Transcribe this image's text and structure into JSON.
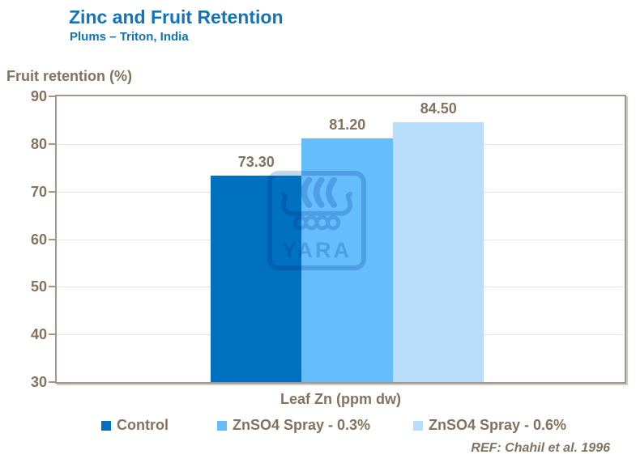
{
  "header": {
    "title": "Zinc and Fruit Retention",
    "subtitle": "Plums – Triton, India"
  },
  "chart_data": {
    "type": "bar",
    "title": "Zinc and Fruit Retention",
    "subtitle": "Plums – Triton, India",
    "ylabel": "Fruit retention (%)",
    "xlabel": "Leaf Zn (ppm dw)",
    "ylim": [
      30,
      90
    ],
    "yticks": [
      "90",
      "80",
      "70",
      "60",
      "50",
      "40",
      "30"
    ],
    "grid": "horizontal",
    "legend_position": "bottom",
    "categories": [
      "Control",
      "ZnSO4 Spray - 0.3%",
      "ZnSO4 Spray - 0.6%"
    ],
    "values": [
      73.3,
      81.2,
      84.5
    ],
    "value_labels": [
      "73.30",
      "81.20",
      "84.50"
    ],
    "bar_colors": [
      "#0071C1",
      "#66BDFC",
      "#B9DEFB"
    ]
  },
  "legend": {
    "items": [
      {
        "label": "Control",
        "color": "#0071C1"
      },
      {
        "label": "ZnSO4 Spray - 0.3%",
        "color": "#66BDFC"
      },
      {
        "label": "ZnSO4 Spray - 0.6%",
        "color": "#B9DEFB"
      }
    ]
  },
  "watermark": {
    "text": "YARA",
    "icon": "viking-ship-icon"
  },
  "footer": {
    "reference": "REF: Chahil et al. 1996"
  },
  "colors": {
    "title_blue": "#0D74BD",
    "text_brown": "#83725E",
    "axis_border": "#A3968B",
    "gridline": "#E7E5E2"
  }
}
